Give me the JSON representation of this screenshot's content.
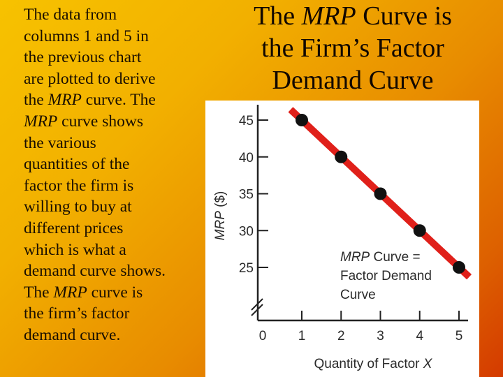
{
  "left_text": {
    "lines": [
      {
        "pre": "The data from",
        "italic": "",
        "post": ""
      },
      {
        "pre": "columns 1 and 5 in",
        "italic": "",
        "post": ""
      },
      {
        "pre": "the previous chart",
        "italic": "",
        "post": ""
      },
      {
        "pre": "are plotted to derive",
        "italic": "",
        "post": ""
      },
      {
        "pre": "the ",
        "italic": "MRP",
        "post": " curve.  The"
      },
      {
        "pre": "",
        "italic": "MRP",
        "post": " curve shows"
      },
      {
        "pre": "the various",
        "italic": "",
        "post": ""
      },
      {
        "pre": "quantities of the",
        "italic": "",
        "post": ""
      },
      {
        "pre": "factor the firm is",
        "italic": "",
        "post": ""
      },
      {
        "pre": "willing to buy at",
        "italic": "",
        "post": ""
      },
      {
        "pre": "different prices",
        "italic": "",
        "post": ""
      },
      {
        "pre": "which is what a",
        "italic": "",
        "post": ""
      },
      {
        "pre": "demand curve shows.",
        "italic": "",
        "post": ""
      },
      {
        "pre": "The ",
        "italic": "MRP",
        "post": " curve is"
      },
      {
        "pre": "the firm’s factor",
        "italic": "",
        "post": ""
      },
      {
        "pre": "demand curve.",
        "italic": "",
        "post": ""
      }
    ]
  },
  "title": {
    "line1_pre": "The ",
    "line1_italic": "MRP",
    "line1_post": " Curve is",
    "line2": "the Firm’s Factor",
    "line3": "Demand Curve"
  },
  "colors": {
    "background_top_left": "#f7c200",
    "background_bottom_right": "#d43a00",
    "curve": "#e0201a",
    "points": "#111111",
    "axis": "#222222",
    "chart_bg": "#ffffff"
  },
  "chart_data": {
    "type": "line",
    "title": "",
    "xlabel_pre": "Quantity of Factor ",
    "xlabel_italic": "X",
    "ylabel_italic": "MRP",
    "ylabel_post": " ($)",
    "x": [
      1,
      2,
      3,
      4,
      5
    ],
    "series": [
      {
        "name": "MRP Curve = Factor Demand Curve",
        "values": [
          45,
          40,
          35,
          30,
          25
        ]
      }
    ],
    "x_ticks": [
      "0",
      "1",
      "2",
      "3",
      "4",
      "5"
    ],
    "y_ticks": [
      "25",
      "30",
      "35",
      "40",
      "45"
    ],
    "xlim": [
      0,
      5
    ],
    "ylim": [
      0,
      47
    ],
    "y_axis_break": true,
    "grid": false,
    "annotation": {
      "line1_italic": "MRP",
      "line1_post": " Curve =",
      "line2": "Factor Demand",
      "line3": "Curve"
    }
  }
}
